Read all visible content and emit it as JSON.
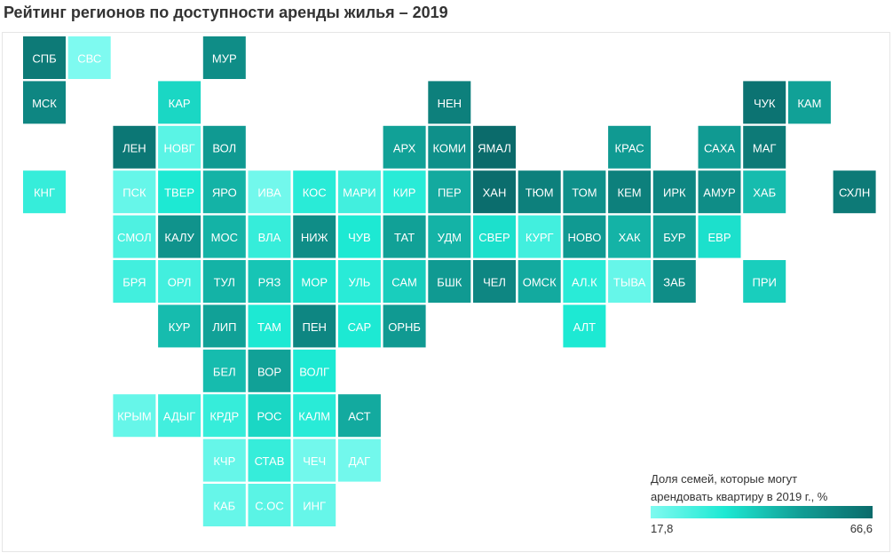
{
  "title": "Рейтинг регионов по доступности аренды жилья – 2019",
  "legend": {
    "title_line1": "Доля семей, которые могут",
    "title_line2": "арендовать квартиру в 2019 г., %",
    "min_label": "17,8",
    "max_label": "66,6",
    "min_value": 17.8,
    "max_value": 66.6,
    "colors": [
      "#7ffaf0",
      "#1de9d3",
      "#119f96",
      "#0b6b6b"
    ]
  },
  "chart_data": {
    "type": "heatmap",
    "title": "Рейтинг регионов по доступности аренды жилья – 2019",
    "value_range": [
      17.8,
      66.6
    ],
    "tiles": [
      {
        "label": "СПБ",
        "col": 0,
        "row": 0,
        "value": 62
      },
      {
        "label": "СВС",
        "col": 1,
        "row": 0,
        "value": 18
      },
      {
        "label": "МУР",
        "col": 4,
        "row": 0,
        "value": 56
      },
      {
        "label": "МСК",
        "col": 0,
        "row": 1,
        "value": 58
      },
      {
        "label": "КАР",
        "col": 3,
        "row": 1,
        "value": 38
      },
      {
        "label": "НЕН",
        "col": 9,
        "row": 1,
        "value": 60
      },
      {
        "label": "ЧУК",
        "col": 16,
        "row": 1,
        "value": 64
      },
      {
        "label": "КАМ",
        "col": 17,
        "row": 1,
        "value": 50
      },
      {
        "label": "ЛЕН",
        "col": 2,
        "row": 2,
        "value": 63
      },
      {
        "label": "НОВГ",
        "col": 3,
        "row": 2,
        "value": 24
      },
      {
        "label": "ВОЛ",
        "col": 4,
        "row": 2,
        "value": 52
      },
      {
        "label": "АРХ",
        "col": 8,
        "row": 2,
        "value": 50
      },
      {
        "label": "КОМИ",
        "col": 9,
        "row": 2,
        "value": 55
      },
      {
        "label": "ЯМАЛ",
        "col": 10,
        "row": 2,
        "value": 66.6
      },
      {
        "label": "КРАС",
        "col": 13,
        "row": 2,
        "value": 52
      },
      {
        "label": "САХА",
        "col": 15,
        "row": 2,
        "value": 52
      },
      {
        "label": "МАГ",
        "col": 16,
        "row": 2,
        "value": 62
      },
      {
        "label": "КНГ",
        "col": 0,
        "row": 3,
        "value": 30
      },
      {
        "label": "ПСК",
        "col": 2,
        "row": 3,
        "value": 22
      },
      {
        "label": "ТВЕР",
        "col": 3,
        "row": 3,
        "value": 34
      },
      {
        "label": "ЯРО",
        "col": 4,
        "row": 3,
        "value": 46
      },
      {
        "label": "ИВА",
        "col": 5,
        "row": 3,
        "value": 20
      },
      {
        "label": "КОС",
        "col": 6,
        "row": 3,
        "value": 32
      },
      {
        "label": "МАРИ",
        "col": 7,
        "row": 3,
        "value": 28
      },
      {
        "label": "КИР",
        "col": 8,
        "row": 3,
        "value": 32
      },
      {
        "label": "ПЕР",
        "col": 9,
        "row": 3,
        "value": 48
      },
      {
        "label": "ХАН",
        "col": 10,
        "row": 3,
        "value": 66
      },
      {
        "label": "ТЮМ",
        "col": 11,
        "row": 3,
        "value": 60
      },
      {
        "label": "ТОМ",
        "col": 12,
        "row": 3,
        "value": 55
      },
      {
        "label": "КЕМ",
        "col": 13,
        "row": 3,
        "value": 60
      },
      {
        "label": "ИРК",
        "col": 14,
        "row": 3,
        "value": 58
      },
      {
        "label": "АМУР",
        "col": 15,
        "row": 3,
        "value": 56
      },
      {
        "label": "ХАБ",
        "col": 16,
        "row": 3,
        "value": 44
      },
      {
        "label": "СХЛН",
        "col": 18,
        "row": 3,
        "value": 62
      },
      {
        "label": "СМОЛ",
        "col": 2,
        "row": 4,
        "value": 26
      },
      {
        "label": "КАЛУ",
        "col": 3,
        "row": 4,
        "value": 54
      },
      {
        "label": "МОС",
        "col": 4,
        "row": 4,
        "value": 46
      },
      {
        "label": "ВЛА",
        "col": 5,
        "row": 4,
        "value": 30
      },
      {
        "label": "НИЖ",
        "col": 6,
        "row": 4,
        "value": 56
      },
      {
        "label": "ЧУВ",
        "col": 7,
        "row": 4,
        "value": 34
      },
      {
        "label": "ТАТ",
        "col": 8,
        "row": 4,
        "value": 50
      },
      {
        "label": "УДМ",
        "col": 9,
        "row": 4,
        "value": 46
      },
      {
        "label": "СВЕР",
        "col": 10,
        "row": 4,
        "value": 36
      },
      {
        "label": "КУРГ",
        "col": 11,
        "row": 4,
        "value": 28
      },
      {
        "label": "НОВО",
        "col": 12,
        "row": 4,
        "value": 52
      },
      {
        "label": "ХАК",
        "col": 13,
        "row": 4,
        "value": 46
      },
      {
        "label": "БУР",
        "col": 14,
        "row": 4,
        "value": 50
      },
      {
        "label": "ЕВР",
        "col": 15,
        "row": 4,
        "value": 36
      },
      {
        "label": "БРЯ",
        "col": 2,
        "row": 5,
        "value": 28
      },
      {
        "label": "ОРЛ",
        "col": 3,
        "row": 5,
        "value": 28
      },
      {
        "label": "ТУЛ",
        "col": 4,
        "row": 5,
        "value": 46
      },
      {
        "label": "РЯЗ",
        "col": 5,
        "row": 5,
        "value": 42
      },
      {
        "label": "МОР",
        "col": 6,
        "row": 5,
        "value": 36
      },
      {
        "label": "УЛЬ",
        "col": 7,
        "row": 5,
        "value": 32
      },
      {
        "label": "САМ",
        "col": 8,
        "row": 5,
        "value": 40
      },
      {
        "label": "БШК",
        "col": 9,
        "row": 5,
        "value": 52
      },
      {
        "label": "ЧЕЛ",
        "col": 10,
        "row": 5,
        "value": 58
      },
      {
        "label": "ОМСК",
        "col": 11,
        "row": 5,
        "value": 48
      },
      {
        "label": "АЛ.К",
        "col": 12,
        "row": 5,
        "value": 32
      },
      {
        "label": "ТЫВА",
        "col": 13,
        "row": 5,
        "value": 22
      },
      {
        "label": "ЗАБ",
        "col": 14,
        "row": 5,
        "value": 56
      },
      {
        "label": "ПРИ",
        "col": 16,
        "row": 5,
        "value": 40
      },
      {
        "label": "КУР",
        "col": 3,
        "row": 6,
        "value": 44
      },
      {
        "label": "ЛИП",
        "col": 4,
        "row": 6,
        "value": 50
      },
      {
        "label": "ТАМ",
        "col": 5,
        "row": 6,
        "value": 34
      },
      {
        "label": "ПЕН",
        "col": 6,
        "row": 6,
        "value": 58
      },
      {
        "label": "САР",
        "col": 7,
        "row": 6,
        "value": 34
      },
      {
        "label": "ОРНБ",
        "col": 8,
        "row": 6,
        "value": 52
      },
      {
        "label": "АЛТ",
        "col": 12,
        "row": 6,
        "value": 34
      },
      {
        "label": "БЕЛ",
        "col": 4,
        "row": 7,
        "value": 44
      },
      {
        "label": "ВОР",
        "col": 5,
        "row": 7,
        "value": 50
      },
      {
        "label": "ВОЛГ",
        "col": 6,
        "row": 7,
        "value": 34
      },
      {
        "label": "КРЫМ",
        "col": 2,
        "row": 8,
        "value": 22
      },
      {
        "label": "АДЫГ",
        "col": 3,
        "row": 8,
        "value": 28
      },
      {
        "label": "КРДР",
        "col": 4,
        "row": 8,
        "value": 30
      },
      {
        "label": "РОС",
        "col": 5,
        "row": 8,
        "value": 38
      },
      {
        "label": "КАЛМ",
        "col": 6,
        "row": 8,
        "value": 32
      },
      {
        "label": "АСТ",
        "col": 7,
        "row": 8,
        "value": 48
      },
      {
        "label": "КЧР",
        "col": 4,
        "row": 9,
        "value": 22
      },
      {
        "label": "СТАВ",
        "col": 5,
        "row": 9,
        "value": 30
      },
      {
        "label": "ЧЕЧ",
        "col": 6,
        "row": 9,
        "value": 20
      },
      {
        "label": "ДАГ",
        "col": 7,
        "row": 9,
        "value": 20
      },
      {
        "label": "КАБ",
        "col": 4,
        "row": 10,
        "value": 22
      },
      {
        "label": "С.ОС",
        "col": 5,
        "row": 10,
        "value": 24
      },
      {
        "label": "ИНГ",
        "col": 6,
        "row": 10,
        "value": 22
      }
    ]
  }
}
